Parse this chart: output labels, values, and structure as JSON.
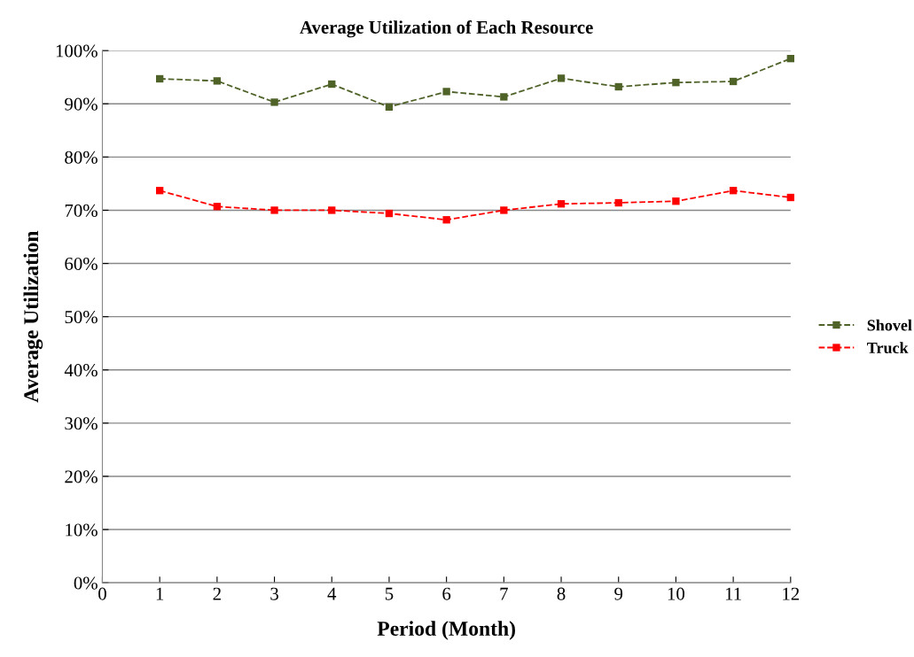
{
  "chart_data": {
    "type": "line",
    "title": "Average Utilization of Each Resource",
    "xlabel": "Period (Month)",
    "ylabel": "Average Utilization",
    "x": [
      1,
      2,
      3,
      4,
      5,
      6,
      7,
      8,
      9,
      10,
      11,
      12
    ],
    "series": [
      {
        "name": "Shovel",
        "color": "#4f6228",
        "values": [
          94.7,
          94.3,
          90.3,
          93.7,
          89.4,
          92.3,
          91.3,
          94.8,
          93.2,
          94.0,
          94.2,
          98.5
        ]
      },
      {
        "name": "Truck",
        "color": "#ff0000",
        "values": [
          73.7,
          70.7,
          70.0,
          70.0,
          69.4,
          68.2,
          70.0,
          71.2,
          71.4,
          71.7,
          73.7,
          72.4
        ]
      }
    ],
    "xlim": [
      0,
      12
    ],
    "xticks": [
      0,
      1,
      2,
      3,
      4,
      5,
      6,
      7,
      8,
      9,
      10,
      11,
      12
    ],
    "ylim": [
      0,
      100
    ],
    "yticks": [
      {
        "value": 0,
        "label": "0%"
      },
      {
        "value": 10,
        "label": "10%"
      },
      {
        "value": 20,
        "label": "20%"
      },
      {
        "value": 30,
        "label": "30%"
      },
      {
        "value": 40,
        "label": "40%"
      },
      {
        "value": 50,
        "label": "50%"
      },
      {
        "value": 60,
        "label": "60%"
      },
      {
        "value": 70,
        "label": "70%"
      },
      {
        "value": 80,
        "label": "80%"
      },
      {
        "value": 90,
        "label": "90%"
      },
      {
        "value": 100,
        "label": "100%"
      }
    ],
    "grid": "y",
    "legend": "right",
    "marker": "square",
    "line_style": "dashed"
  }
}
